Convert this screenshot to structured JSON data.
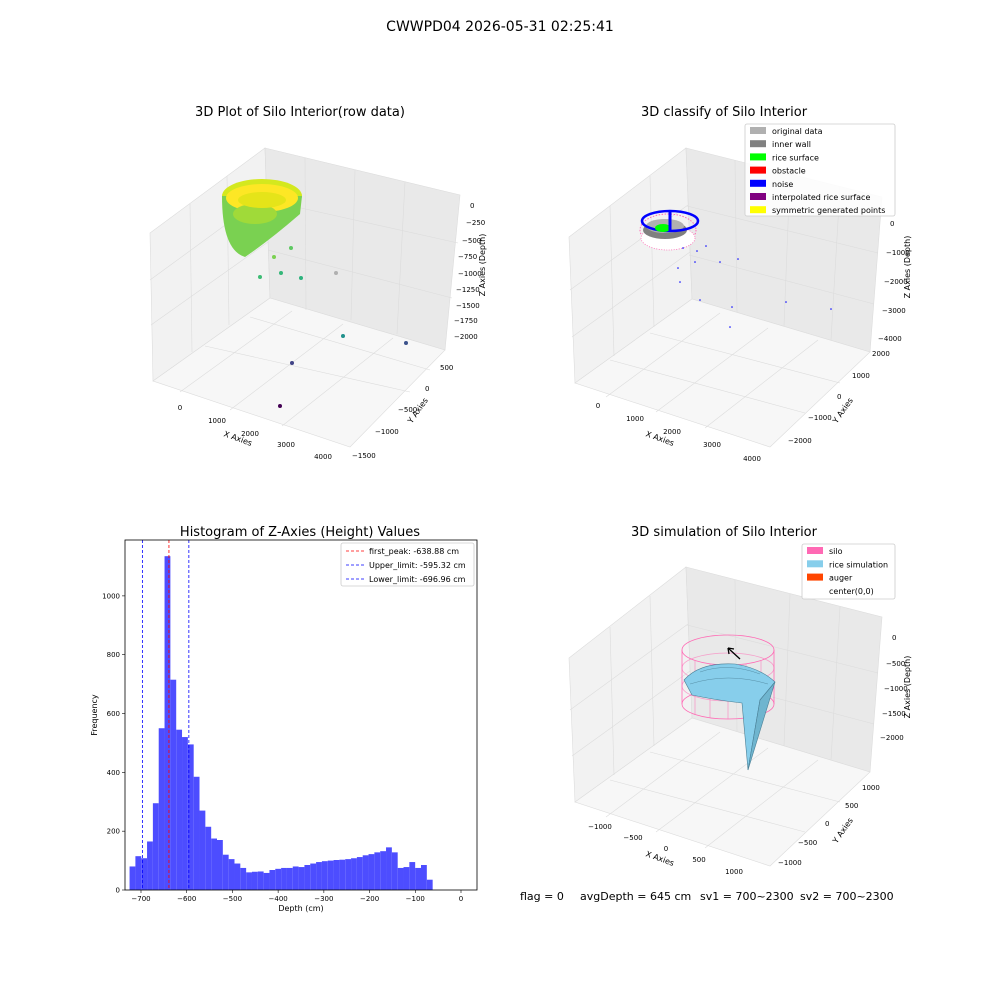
{
  "suptitle": "CWWPD04 2026-05-31 02:25:41",
  "footer": {
    "flag": "flag = 0",
    "avg_depth": "avgDepth = 645 cm",
    "sv1": "sv1 = 700~2300",
    "sv2": "sv2 = 700~2300"
  },
  "colors": {
    "hist_fill": "#4d4dff",
    "peak_line": "#ff0000",
    "limit_line": "#0000ff",
    "silo_mesh": "#ff69b4",
    "rice_sim": "#87ceeb",
    "auger": "#ff4500"
  },
  "panels": {
    "raw": {
      "title": "3D Plot of Silo Interior(row data)",
      "x_label": "X Axies",
      "y_label": "Y Axies",
      "z_label": "Z Axies (Depth)",
      "x_ticks": [
        "0",
        "1000",
        "2000",
        "3000",
        "4000"
      ],
      "y_ticks": [
        "500",
        "0",
        "−500",
        "−1000",
        "−1500"
      ],
      "z_ticks": [
        "0",
        "−250",
        "−500",
        "−750",
        "−1000",
        "−1250",
        "−1500",
        "−1750",
        "−2000"
      ]
    },
    "classify": {
      "title": "3D classify of Silo Interior",
      "x_label": "X Axies",
      "y_label": "Y Axies",
      "z_label": "Z Axies (Depth)",
      "x_ticks": [
        "0",
        "1000",
        "2000",
        "3000",
        "4000"
      ],
      "y_ticks": [
        "2000",
        "1000",
        "0",
        "−1000",
        "−2000"
      ],
      "z_ticks": [
        "0",
        "−1000",
        "−2000",
        "−3000",
        "−4000"
      ],
      "legend": [
        {
          "label": "original data",
          "color": "#b0b0b0"
        },
        {
          "label": "inner wall",
          "color": "#808080"
        },
        {
          "label": "rice surface",
          "color": "#00ff00"
        },
        {
          "label": "obstacle",
          "color": "#ff0000"
        },
        {
          "label": "noise",
          "color": "#0000ff"
        },
        {
          "label": "interpolated rice surface",
          "color": "#800080"
        },
        {
          "label": "symmetric generated points",
          "color": "#ffff00"
        }
      ]
    },
    "simulation": {
      "title": "3D simulation of Silo Interior",
      "x_label": "X Axies",
      "y_label": "Y Axies",
      "z_label": "Z Axies (Depth)",
      "x_ticks": [
        "−1000",
        "−500",
        "0",
        "500",
        "1000"
      ],
      "y_ticks": [
        "1000",
        "500",
        "0",
        "−500",
        "−1000"
      ],
      "z_ticks": [
        "0",
        "−500",
        "−1000",
        "−1500",
        "−2000"
      ],
      "legend": [
        {
          "label": "silo",
          "color": "#ff69b4"
        },
        {
          "label": "rice simulation",
          "color": "#87ceeb"
        },
        {
          "label": "auger",
          "color": "#ff4500"
        },
        {
          "label": "center(0,0)",
          "color": "#ffffff"
        }
      ]
    }
  },
  "chart_data": {
    "type": "bar",
    "title": "Histogram of Z-Axies (Height) Values",
    "xlabel": "Depth (cm)",
    "ylabel": "Frequency",
    "xlim": [
      -735,
      35
    ],
    "ylim": [
      0,
      1190
    ],
    "x_ticks": [
      -700,
      -600,
      -500,
      -400,
      -300,
      -200,
      -100,
      0
    ],
    "y_ticks": [
      0,
      200,
      400,
      600,
      800,
      1000
    ],
    "bin_start": -725,
    "bin_width": 12.75,
    "values": [
      80,
      115,
      108,
      165,
      295,
      550,
      1135,
      715,
      545,
      520,
      495,
      385,
      270,
      215,
      175,
      170,
      120,
      105,
      90,
      75,
      60,
      62,
      63,
      58,
      68,
      72,
      75,
      75,
      80,
      78,
      85,
      90,
      95,
      98,
      100,
      102,
      103,
      105,
      108,
      112,
      118,
      122,
      128,
      132,
      145,
      128,
      75,
      78,
      95,
      75,
      85,
      35
    ],
    "vlines": [
      {
        "name": "first_peak: -638.88 cm",
        "x": -638.88,
        "color": "#ff0000"
      },
      {
        "name": "Upper_limit: -595.32 cm",
        "x": -595.32,
        "color": "#0000ff"
      },
      {
        "name": "Lower_limit: -696.96 cm",
        "x": -696.96,
        "color": "#0000ff"
      }
    ],
    "legend_position": "top-right"
  }
}
